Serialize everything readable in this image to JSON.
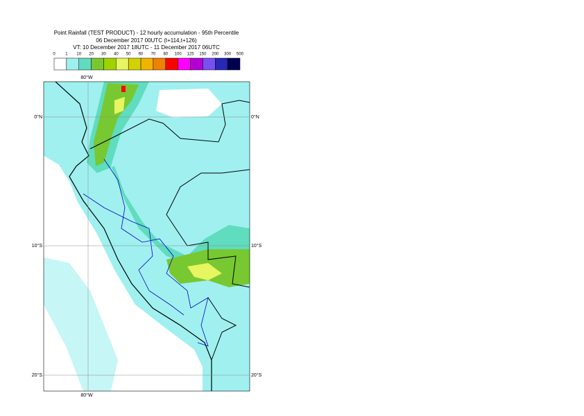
{
  "title": {
    "line1": "Point Rainfall (TEST PRODUCT) - 12 hourly accumulation - 95th Percentile",
    "line2": "06 December 2017 00UTC (t+114,t+126)",
    "line3": "VT: 10 December 2017 18UTC - 11 December 2017 06UTC"
  },
  "legend": {
    "labels": [
      "0",
      "1",
      "10",
      "20",
      "30",
      "40",
      "50",
      "60",
      "70",
      "80",
      "100",
      "125",
      "150",
      "200",
      "300",
      "500"
    ],
    "colors": [
      "#ffffff",
      "#a0f0f0",
      "#60dcbe",
      "#78c832",
      "#a0d200",
      "#e6f560",
      "#d2d200",
      "#f0b400",
      "#f08200",
      "#ff0000",
      "#ff00ff",
      "#b400d2",
      "#7850f0",
      "#2828b4",
      "#000050"
    ]
  },
  "map": {
    "lat_labels": [
      "0°N",
      "10°S",
      "20°S"
    ],
    "lon_label": "80°W"
  }
}
